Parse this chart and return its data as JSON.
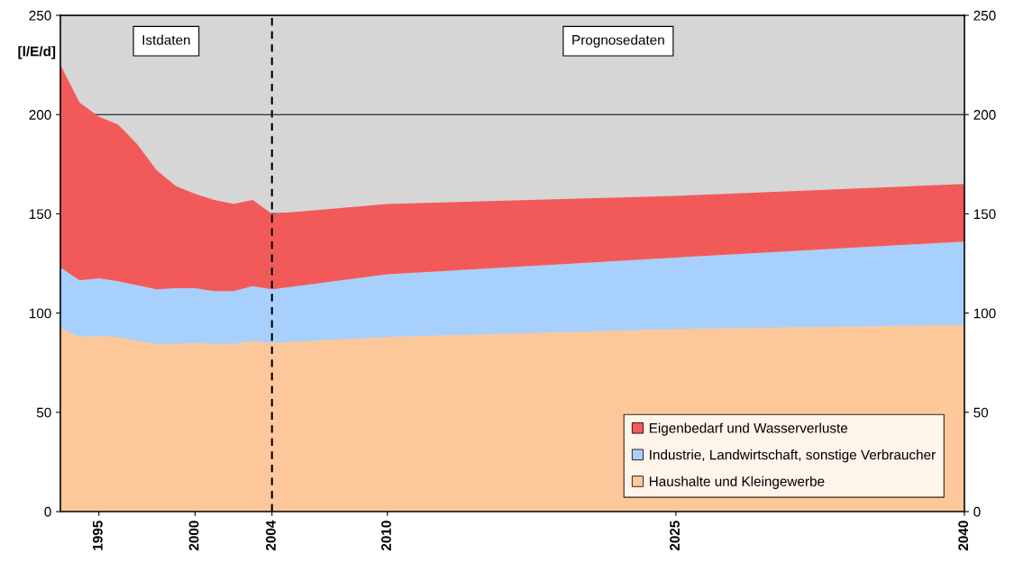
{
  "chart_data": {
    "type": "area",
    "stacked": true,
    "ylabel": "[l/E/d]",
    "x": [
      1993,
      1994,
      1995,
      1996,
      1997,
      1998,
      1999,
      2000,
      2001,
      2002,
      2003,
      2004,
      2010,
      2025,
      2040
    ],
    "series": [
      {
        "name": "Haushalte und Kleingewerbe",
        "color": "#fcc89a",
        "values": [
          92.5,
          88,
          88.5,
          88,
          86,
          84.5,
          84.5,
          85,
          84.5,
          84.5,
          86,
          85,
          88,
          92,
          94
        ]
      },
      {
        "name": "Industrie, Landwirtschaft, sonstige Verbraucher",
        "color": "#a8d0fc",
        "values": [
          30.5,
          28.5,
          29,
          28,
          28,
          27.5,
          28,
          27.5,
          26.5,
          26.5,
          27.5,
          27,
          31.5,
          36,
          42
        ]
      },
      {
        "name": "Eigenbedarf und Wasserverluste",
        "color": "#f25a5a",
        "values": [
          102,
          89.5,
          81.5,
          79,
          71,
          60,
          51.5,
          47.5,
          46,
          44,
          43.5,
          38,
          35.5,
          31,
          29
        ]
      }
    ],
    "xlim": [
      1993,
      2040
    ],
    "xticks": [
      1995,
      2000,
      2004,
      2010,
      2025,
      2040
    ],
    "ylim": [
      0,
      250
    ],
    "yticks": [
      0,
      50,
      100,
      150,
      200,
      250
    ],
    "y2lim": [
      0,
      250
    ],
    "y2ticks": [
      0,
      50,
      100,
      150,
      200,
      250
    ],
    "ref_lines": [
      {
        "axis": "x",
        "value": 2004,
        "color": "#000000",
        "line_style": "dashed"
      }
    ],
    "annotations": [
      "Istdaten",
      "Prognosedaten"
    ],
    "grid": "y",
    "legend": "bottom right"
  }
}
